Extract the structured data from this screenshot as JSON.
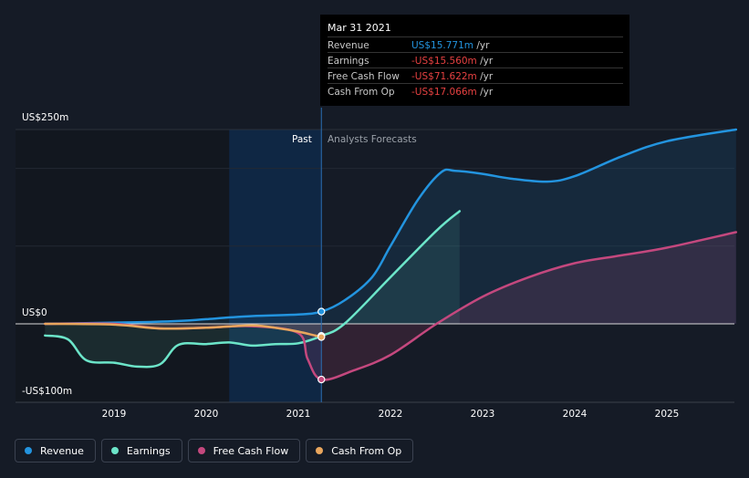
{
  "tooltip": {
    "date": "Mar 31 2021",
    "rows": [
      {
        "label": "Revenue",
        "value": "US$15.771m",
        "unit": "/yr",
        "color": "#2394df"
      },
      {
        "label": "Earnings",
        "value": "-US$15.560m",
        "unit": "/yr",
        "color": "#e64141"
      },
      {
        "label": "Free Cash Flow",
        "value": "-US$71.622m",
        "unit": "/yr",
        "color": "#e64141"
      },
      {
        "label": "Cash From Op",
        "value": "-US$17.066m",
        "unit": "/yr",
        "color": "#e64141"
      }
    ]
  },
  "labels": {
    "past": "Past",
    "forecast": "Analysts Forecasts"
  },
  "legend": [
    {
      "label": "Revenue",
      "color": "#2394df"
    },
    {
      "label": "Earnings",
      "color": "#6ce5c9"
    },
    {
      "label": "Free Cash Flow",
      "color": "#c4487e"
    },
    {
      "label": "Cash From Op",
      "color": "#e9a65d"
    }
  ],
  "chart_data": {
    "type": "line",
    "title": "",
    "y_tick_labels": [
      "US$250m",
      "US$0",
      "-US$100m"
    ],
    "ylim": [
      -100,
      250
    ],
    "xlim": [
      2018.25,
      2025.75
    ],
    "x_ticks": [
      2019,
      2020,
      2021,
      2022,
      2023,
      2024,
      2025
    ],
    "past_end": 2021.25,
    "highlight_start": 2020.25,
    "series": [
      {
        "name": "Revenue",
        "color": "#2394df",
        "x": [
          2018.25,
          2018.75,
          2019.25,
          2019.75,
          2020.0,
          2020.5,
          2021.0,
          2021.25,
          2021.5,
          2021.8,
          2022.0,
          2022.3,
          2022.55,
          2022.7,
          2023.0,
          2023.3,
          2023.7,
          2024.0,
          2024.5,
          2025.0,
          2025.75
        ],
        "y": [
          0,
          1,
          2,
          4,
          6,
          10,
          12,
          15.771,
          30,
          60,
          100,
          160,
          195,
          197,
          193,
          187,
          183,
          190,
          215,
          235,
          250
        ]
      },
      {
        "name": "Earnings",
        "color": "#6ce5c9",
        "x": [
          2018.25,
          2018.5,
          2018.7,
          2019.0,
          2019.25,
          2019.5,
          2019.7,
          2020.0,
          2020.25,
          2020.5,
          2020.75,
          2021.0,
          2021.25,
          2021.5,
          2022.0,
          2022.5,
          2022.75
        ],
        "y": [
          -15,
          -20,
          -47,
          -50,
          -55,
          -52,
          -27,
          -26,
          -24,
          -28,
          -26,
          -25,
          -15.56,
          0,
          60,
          120,
          145
        ]
      },
      {
        "name": "Free Cash Flow",
        "color": "#c4487e",
        "x": [
          2018.25,
          2019.0,
          2019.5,
          2020.0,
          2020.5,
          2021.0,
          2021.1,
          2021.25,
          2021.6,
          2022.0,
          2022.5,
          2023.0,
          2023.5,
          2024.0,
          2024.5,
          2025.0,
          2025.75
        ],
        "y": [
          0,
          0,
          -6,
          -5,
          -3,
          -12,
          -45,
          -71.622,
          -60,
          -40,
          0,
          35,
          60,
          78,
          88,
          98,
          118
        ]
      },
      {
        "name": "Cash From Op",
        "color": "#e9a65d",
        "x": [
          2018.25,
          2019.0,
          2019.5,
          2020.0,
          2020.5,
          2020.8,
          2021.0,
          2021.25
        ],
        "y": [
          0,
          -1,
          -6,
          -5,
          -2,
          -6,
          -10,
          -17.066
        ]
      }
    ]
  }
}
